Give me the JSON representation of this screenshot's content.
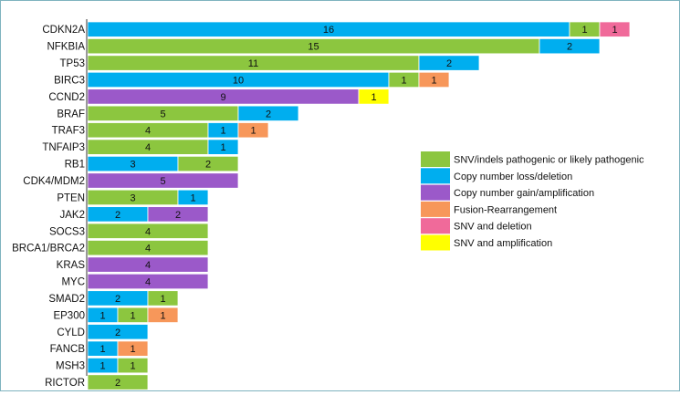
{
  "chart_data": {
    "type": "bar",
    "orientation": "horizontal",
    "stacked": true,
    "legend_position": "right",
    "categories": [
      "CDKN2A",
      "NFKBIA",
      "TP53",
      "BIRC3",
      "CCND2",
      "BRAF",
      "TRAF3",
      "TNFAIP3",
      "RB1",
      "CDK4/MDM2",
      "PTEN",
      "JAK2",
      "SOCS3",
      "BRCA1/BRCA2",
      "KRAS",
      "MYC",
      "SMAD2",
      "EP300",
      "CYLD",
      "FANCB",
      "MSH3",
      "RICTOR"
    ],
    "series": [
      {
        "name": "SNV/indels pathogenic or likely pathogenic",
        "color": "#8cc63f"
      },
      {
        "name": "Copy number loss/deletion",
        "color": "#00aeef"
      },
      {
        "name": "Copy number gain/amplification",
        "color": "#9b59c9"
      },
      {
        "name": "Fusion-Rearrangement",
        "color": "#f7975a"
      },
      {
        "name": "SNV and deletion",
        "color": "#f06a9a"
      },
      {
        "name": "SNV and amplification",
        "color": "#ffff00"
      }
    ],
    "rows": [
      {
        "gene": "CDKN2A",
        "segments": [
          {
            "series": 1,
            "value": 16
          },
          {
            "series": 0,
            "value": 1
          },
          {
            "series": 4,
            "value": 1
          }
        ]
      },
      {
        "gene": "NFKBIA",
        "segments": [
          {
            "series": 0,
            "value": 15
          },
          {
            "series": 1,
            "value": 2
          }
        ]
      },
      {
        "gene": "TP53",
        "segments": [
          {
            "series": 0,
            "value": 11
          },
          {
            "series": 1,
            "value": 2
          }
        ]
      },
      {
        "gene": "BIRC3",
        "segments": [
          {
            "series": 1,
            "value": 10
          },
          {
            "series": 0,
            "value": 1
          },
          {
            "series": 3,
            "value": 1
          }
        ]
      },
      {
        "gene": "CCND2",
        "segments": [
          {
            "series": 2,
            "value": 9
          },
          {
            "series": 5,
            "value": 1
          }
        ]
      },
      {
        "gene": "BRAF",
        "segments": [
          {
            "series": 0,
            "value": 5
          },
          {
            "series": 1,
            "value": 2
          }
        ]
      },
      {
        "gene": "TRAF3",
        "segments": [
          {
            "series": 0,
            "value": 4
          },
          {
            "series": 1,
            "value": 1
          },
          {
            "series": 3,
            "value": 1
          }
        ]
      },
      {
        "gene": "TNFAIP3",
        "segments": [
          {
            "series": 0,
            "value": 4
          },
          {
            "series": 1,
            "value": 1
          }
        ]
      },
      {
        "gene": "RB1",
        "segments": [
          {
            "series": 1,
            "value": 3
          },
          {
            "series": 0,
            "value": 2
          }
        ]
      },
      {
        "gene": "CDK4/MDM2",
        "segments": [
          {
            "series": 2,
            "value": 5
          }
        ]
      },
      {
        "gene": "PTEN",
        "segments": [
          {
            "series": 0,
            "value": 3
          },
          {
            "series": 1,
            "value": 1
          }
        ]
      },
      {
        "gene": "JAK2",
        "segments": [
          {
            "series": 1,
            "value": 2
          },
          {
            "series": 2,
            "value": 2
          }
        ]
      },
      {
        "gene": "SOCS3",
        "segments": [
          {
            "series": 0,
            "value": 4
          }
        ]
      },
      {
        "gene": "BRCA1/BRCA2",
        "segments": [
          {
            "series": 0,
            "value": 4
          }
        ]
      },
      {
        "gene": "KRAS",
        "segments": [
          {
            "series": 2,
            "value": 4
          }
        ]
      },
      {
        "gene": "MYC",
        "segments": [
          {
            "series": 2,
            "value": 4
          }
        ]
      },
      {
        "gene": "SMAD2",
        "segments": [
          {
            "series": 1,
            "value": 2
          },
          {
            "series": 0,
            "value": 1
          }
        ]
      },
      {
        "gene": "EP300",
        "segments": [
          {
            "series": 1,
            "value": 1
          },
          {
            "series": 0,
            "value": 1
          },
          {
            "series": 3,
            "value": 1
          }
        ]
      },
      {
        "gene": "CYLD",
        "segments": [
          {
            "series": 1,
            "value": 2
          }
        ]
      },
      {
        "gene": "FANCB",
        "segments": [
          {
            "series": 1,
            "value": 1
          },
          {
            "series": 3,
            "value": 1
          }
        ]
      },
      {
        "gene": "MSH3",
        "segments": [
          {
            "series": 1,
            "value": 1
          },
          {
            "series": 0,
            "value": 1
          }
        ]
      },
      {
        "gene": "RICTOR",
        "segments": [
          {
            "series": 0,
            "value": 2
          }
        ]
      }
    ]
  }
}
